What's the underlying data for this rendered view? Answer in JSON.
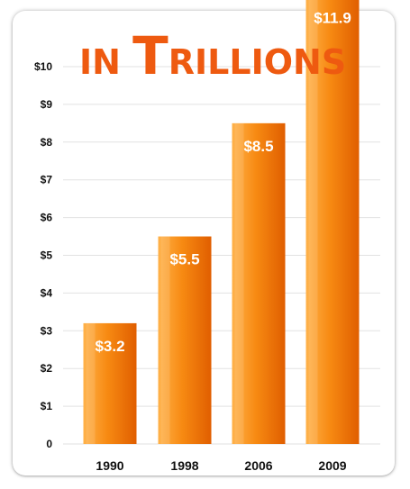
{
  "chart_data": {
    "type": "bar",
    "title": "in Trillions",
    "title_parts": [
      {
        "text": "IN ",
        "big": false
      },
      {
        "text": "T",
        "big": true
      },
      {
        "text": "RILLIONS",
        "big": false
      }
    ],
    "categories": [
      "1990",
      "1998",
      "2006",
      "2009"
    ],
    "values": [
      3.2,
      5.5,
      8.5,
      11.9
    ],
    "value_labels": [
      "$3.2",
      "$5.5",
      "$8.5",
      "$11.9"
    ],
    "ylim": [
      0,
      11.9
    ],
    "yticks": [
      0,
      1,
      2,
      3,
      4,
      5,
      6,
      7,
      8,
      9,
      10
    ],
    "ytick_labels": [
      "0",
      "$1",
      "$2",
      "$3",
      "$4",
      "$5",
      "$6",
      "$7",
      "$8",
      "$9",
      "$10"
    ],
    "xlabel": "",
    "ylabel": "",
    "grid": true,
    "legend": "none",
    "colors": {
      "bar_light": "#ffb24a",
      "bar_mid": "#f78a12",
      "bar_dark": "#e05e00",
      "title": "#ee5a10",
      "grid": "#e2e2e2"
    }
  }
}
